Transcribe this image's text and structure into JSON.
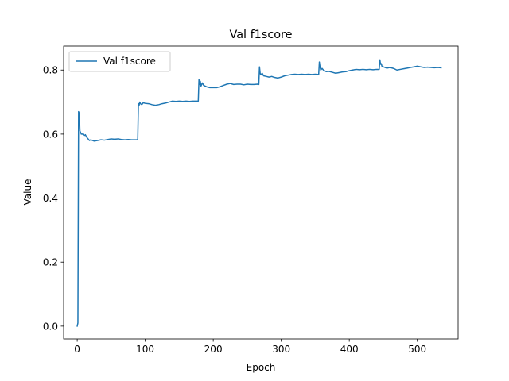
{
  "chart_data": {
    "type": "line",
    "title": "Val f1score",
    "xlabel": "Epoch",
    "ylabel": "Value",
    "xlim": [
      -20,
      560
    ],
    "ylim": [
      -0.04,
      0.875
    ],
    "xticks": [
      0,
      100,
      200,
      300,
      400,
      500
    ],
    "yticks": [
      0.0,
      0.2,
      0.4,
      0.6,
      0.8
    ],
    "xtick_labels": [
      "0",
      "100",
      "200",
      "300",
      "400",
      "500"
    ],
    "ytick_labels": [
      "0.0",
      "0.2",
      "0.4",
      "0.6",
      "0.8"
    ],
    "grid": false,
    "legend_position": "upper-left",
    "series": [
      {
        "name": "Val f1score",
        "color": "#1f77b4",
        "x": [
          0,
          1,
          2,
          3,
          4,
          5,
          6,
          8,
          10,
          12,
          14,
          16,
          18,
          20,
          25,
          30,
          35,
          40,
          45,
          50,
          55,
          60,
          65,
          70,
          75,
          80,
          85,
          89,
          90,
          91,
          92,
          93,
          95,
          97,
          100,
          105,
          110,
          115,
          120,
          125,
          130,
          135,
          140,
          145,
          150,
          155,
          160,
          165,
          170,
          175,
          178,
          179,
          180,
          181,
          182,
          184,
          186,
          190,
          195,
          200,
          205,
          210,
          215,
          220,
          225,
          230,
          235,
          240,
          245,
          250,
          255,
          260,
          265,
          267,
          268,
          269,
          270,
          272,
          274,
          278,
          282,
          286,
          290,
          295,
          300,
          305,
          310,
          315,
          320,
          325,
          330,
          335,
          340,
          345,
          350,
          355,
          356,
          357,
          358,
          360,
          362,
          366,
          370,
          375,
          380,
          385,
          390,
          395,
          400,
          405,
          410,
          415,
          420,
          425,
          430,
          435,
          440,
          444,
          445,
          446,
          447,
          448,
          450,
          455,
          460,
          465,
          470,
          475,
          480,
          485,
          490,
          495,
          500,
          505,
          510,
          515,
          520,
          525,
          530,
          535
        ],
        "y": [
          0.0,
          0.01,
          0.67,
          0.665,
          0.61,
          0.605,
          0.6,
          0.6,
          0.595,
          0.598,
          0.59,
          0.585,
          0.58,
          0.582,
          0.578,
          0.58,
          0.582,
          0.581,
          0.583,
          0.585,
          0.584,
          0.585,
          0.583,
          0.582,
          0.583,
          0.582,
          0.582,
          0.582,
          0.695,
          0.69,
          0.7,
          0.695,
          0.692,
          0.698,
          0.696,
          0.695,
          0.692,
          0.69,
          0.692,
          0.695,
          0.697,
          0.7,
          0.703,
          0.702,
          0.703,
          0.702,
          0.703,
          0.702,
          0.703,
          0.703,
          0.703,
          0.77,
          0.755,
          0.765,
          0.75,
          0.76,
          0.752,
          0.748,
          0.745,
          0.745,
          0.745,
          0.748,
          0.752,
          0.756,
          0.758,
          0.755,
          0.756,
          0.756,
          0.754,
          0.756,
          0.755,
          0.755,
          0.756,
          0.755,
          0.81,
          0.79,
          0.785,
          0.79,
          0.782,
          0.78,
          0.778,
          0.78,
          0.777,
          0.775,
          0.778,
          0.782,
          0.784,
          0.786,
          0.787,
          0.786,
          0.787,
          0.786,
          0.787,
          0.786,
          0.787,
          0.786,
          0.825,
          0.81,
          0.8,
          0.805,
          0.8,
          0.795,
          0.796,
          0.793,
          0.79,
          0.792,
          0.794,
          0.795,
          0.798,
          0.8,
          0.802,
          0.801,
          0.802,
          0.801,
          0.802,
          0.801,
          0.802,
          0.802,
          0.832,
          0.818,
          0.82,
          0.812,
          0.81,
          0.806,
          0.808,
          0.805,
          0.8,
          0.802,
          0.804,
          0.806,
          0.808,
          0.81,
          0.812,
          0.81,
          0.808,
          0.809,
          0.808,
          0.807,
          0.808,
          0.807
        ]
      }
    ]
  }
}
